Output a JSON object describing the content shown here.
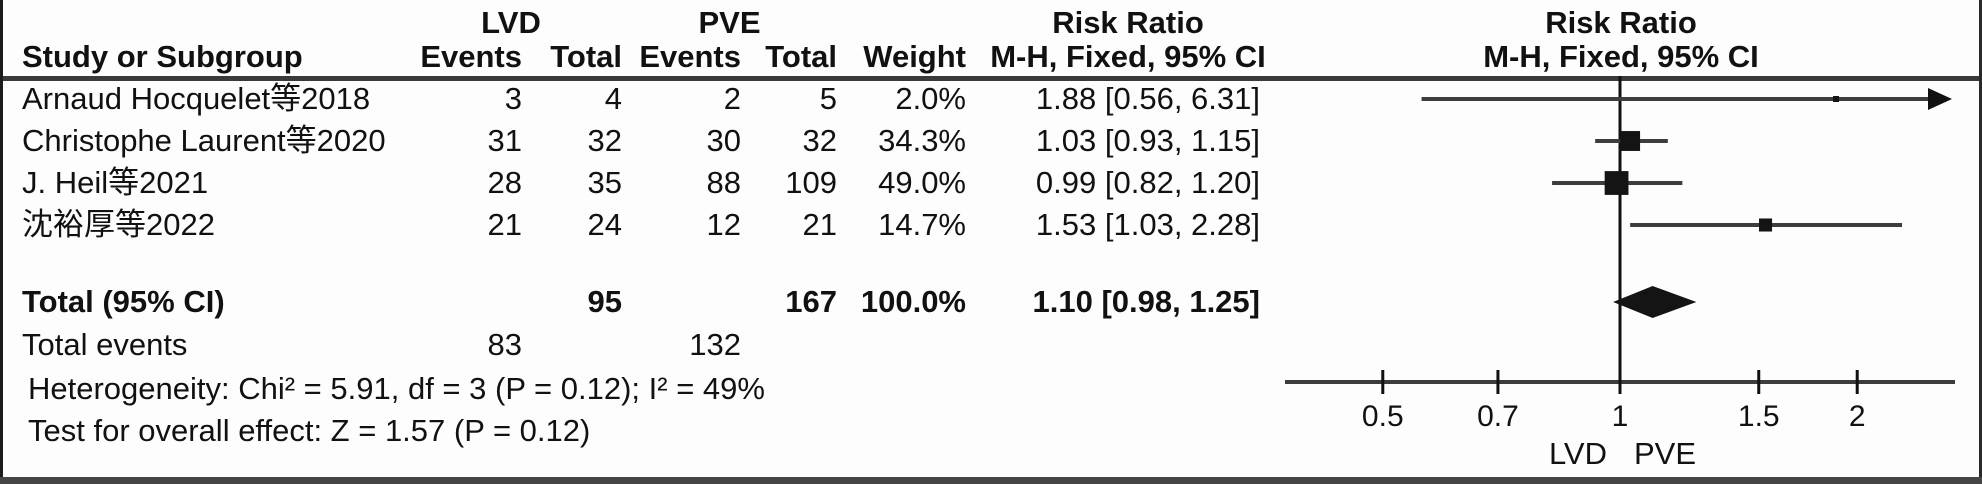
{
  "table": {
    "group_headers": {
      "lvd": "LVD",
      "pve": "PVE",
      "risk_ratio": "Risk Ratio"
    },
    "col_headers": {
      "study": "Study or Subgroup",
      "lvd_events": "Events",
      "lvd_total": "Total",
      "pve_events": "Events",
      "pve_total": "Total",
      "weight": "Weight",
      "mh": "M-H, Fixed, 95% CI"
    },
    "studies": [
      {
        "name": "Arnaud Hocquelet等2018",
        "lvd_events": "3",
        "lvd_total": "4",
        "pve_events": "2",
        "pve_total": "5",
        "weight": "2.0%",
        "rr": "1.88 [0.56, 6.31]"
      },
      {
        "name": "Christophe Laurent等2020",
        "lvd_events": "31",
        "lvd_total": "32",
        "pve_events": "30",
        "pve_total": "32",
        "weight": "34.3%",
        "rr": "1.03 [0.93, 1.15]"
      },
      {
        "name": "J. Heil等2021",
        "lvd_events": "28",
        "lvd_total": "35",
        "pve_events": "88",
        "pve_total": "109",
        "weight": "49.0%",
        "rr": "0.99 [0.82, 1.20]"
      },
      {
        "name": "沈裕厚等2022",
        "lvd_events": "21",
        "lvd_total": "24",
        "pve_events": "12",
        "pve_total": "21",
        "weight": "14.7%",
        "rr": "1.53 [1.03, 2.28]"
      }
    ],
    "total": {
      "label": "Total (95% CI)",
      "lvd_total": "95",
      "pve_total": "167",
      "weight": "100.0%",
      "rr": "1.10 [0.98, 1.25]"
    },
    "total_events": {
      "label": "Total events",
      "lvd": "83",
      "pve": "132"
    },
    "heterogeneity": "Heterogeneity: Chi² = 5.91, df = 3 (P = 0.12); I² = 49%",
    "overall_effect": "Test for overall effect: Z = 1.57 (P = 0.12)"
  },
  "plot_header": {
    "title": "Risk Ratio",
    "subtitle": "M-H, Fixed, 95% CI"
  },
  "chart_data": {
    "type": "forest",
    "x_scale": "log10",
    "axis_ticks": [
      0.5,
      0.7,
      1,
      1.5,
      2
    ],
    "tick_labels": [
      "0.5",
      "0.7",
      "1",
      "1.5",
      "2"
    ],
    "axis_range": [
      0.37,
      2.67
    ],
    "null_line": 1,
    "studies": [
      {
        "name": "Arnaud Hocquelet等2018",
        "est": 1.88,
        "lo": 0.56,
        "hi": 6.31,
        "weight_pct": 2.0,
        "clipped_right": true
      },
      {
        "name": "Christophe Laurent等2020",
        "est": 1.03,
        "lo": 0.93,
        "hi": 1.15,
        "weight_pct": 34.3,
        "clipped_right": false
      },
      {
        "name": "J. Heil等2021",
        "est": 0.99,
        "lo": 0.82,
        "hi": 1.2,
        "weight_pct": 49.0,
        "clipped_right": false
      },
      {
        "name": "沈裕厚等2022",
        "est": 1.53,
        "lo": 1.03,
        "hi": 2.28,
        "weight_pct": 14.7,
        "clipped_right": false
      }
    ],
    "diamond": {
      "est": 1.1,
      "lo": 0.98,
      "hi": 1.25
    },
    "favours_left": "LVD",
    "favours_right": "PVE"
  },
  "colors": {
    "text": "#111111",
    "line": "#3d3d3d",
    "marker": "#141414",
    "rule": "#3a3a3a"
  }
}
